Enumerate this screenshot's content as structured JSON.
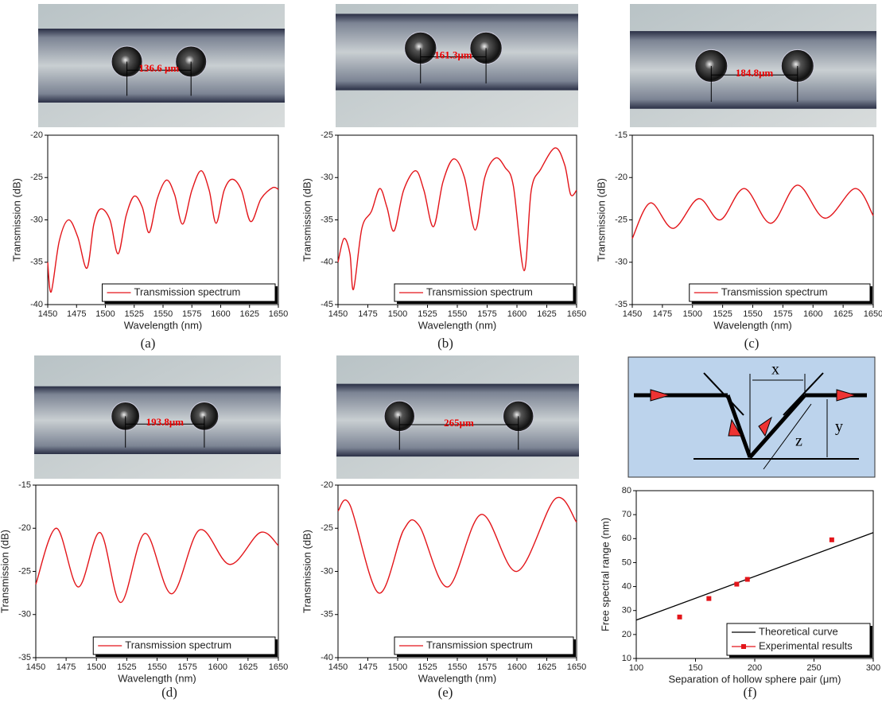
{
  "chart_data": [
    {
      "type": "line",
      "label": "(a)",
      "annotation": "136.6 μm",
      "xlabel": "Wavelength (nm)",
      "ylabel": "Transmission (dB)",
      "x": [
        1450,
        1453,
        1460,
        1468,
        1476,
        1484,
        1490,
        1496,
        1504,
        1511,
        1518,
        1525,
        1532,
        1538,
        1545,
        1553,
        1560,
        1567,
        1575,
        1583,
        1590,
        1596,
        1603,
        1610,
        1618,
        1626,
        1635,
        1645,
        1650
      ],
      "series": [
        {
          "name": "Transmission spectrum",
          "color": "#e3151a",
          "values": [
            -35,
            -38.5,
            -32.5,
            -30,
            -32,
            -35.7,
            -30.5,
            -28.7,
            -30,
            -34,
            -29.5,
            -27.2,
            -28.5,
            -31.5,
            -27.5,
            -25.3,
            -27,
            -30.5,
            -26.5,
            -24.2,
            -26.5,
            -30.4,
            -26.5,
            -25.2,
            -26.5,
            -30.2,
            -27.5,
            -26.2,
            -26.4
          ]
        }
      ],
      "xlim": [
        1450,
        1650
      ],
      "ylim": [
        -40,
        -20
      ],
      "xticks": [
        1450,
        1475,
        1500,
        1525,
        1550,
        1575,
        1600,
        1625,
        1650
      ],
      "yticks": [
        -40,
        -35,
        -30,
        -25,
        -20
      ]
    },
    {
      "type": "line",
      "label": "(b)",
      "annotation": "161.3μm",
      "xlabel": "Wavelength (nm)",
      "ylabel": "Transmission (dB)",
      "x": [
        1450,
        1455,
        1460,
        1463,
        1470,
        1478,
        1485,
        1491,
        1497,
        1505,
        1515,
        1522,
        1530,
        1538,
        1547,
        1556,
        1565,
        1573,
        1582,
        1590,
        1597,
        1606,
        1612,
        1620,
        1632,
        1640,
        1645,
        1650
      ],
      "series": [
        {
          "name": "Transmission spectrum",
          "color": "#e3151a",
          "values": [
            -40,
            -37.2,
            -39,
            -43.2,
            -36,
            -34,
            -31.3,
            -33.5,
            -36.3,
            -31.5,
            -29.2,
            -31.5,
            -35.8,
            -30.5,
            -27.8,
            -30,
            -36.2,
            -30,
            -27.7,
            -28.8,
            -31,
            -41,
            -31.5,
            -29,
            -26.5,
            -28.5,
            -32,
            -31.5
          ]
        }
      ],
      "xlim": [
        1450,
        1650
      ],
      "ylim": [
        -45,
        -25
      ],
      "xticks": [
        1450,
        1475,
        1500,
        1525,
        1550,
        1575,
        1600,
        1625,
        1650
      ],
      "yticks": [
        -45,
        -40,
        -35,
        -30,
        -25
      ]
    },
    {
      "type": "line",
      "label": "(c)",
      "annotation": "184.8μm",
      "xlabel": "Wavelength (nm)",
      "ylabel": "Transmission (dB)",
      "x": [
        1450,
        1465,
        1484,
        1505,
        1523,
        1543,
        1565,
        1587,
        1610,
        1635,
        1650
      ],
      "series": [
        {
          "name": "Transmission spectrum",
          "color": "#e3151a",
          "values": [
            -27.2,
            -23,
            -26,
            -22.5,
            -25,
            -21.3,
            -25.4,
            -20.9,
            -24.8,
            -21.3,
            -24.5
          ]
        }
      ],
      "xlim": [
        1450,
        1650
      ],
      "ylim": [
        -35,
        -15
      ],
      "xticks": [
        1450,
        1475,
        1500,
        1525,
        1550,
        1575,
        1600,
        1625,
        1650
      ],
      "yticks": [
        -35,
        -30,
        -25,
        -20,
        -15
      ]
    },
    {
      "type": "line",
      "label": "(d)",
      "annotation": "193.8μm",
      "xlabel": "Wavelength (nm)",
      "ylabel": "Transmission (dB)",
      "x": [
        1450,
        1467,
        1485,
        1503,
        1520,
        1540,
        1562,
        1585,
        1610,
        1635,
        1650
      ],
      "series": [
        {
          "name": "Transmission spectrum",
          "color": "#e3151a",
          "values": [
            -26.5,
            -20,
            -26.8,
            -20.5,
            -28.6,
            -20.6,
            -27.6,
            -20.2,
            -24.2,
            -20.5,
            -22
          ]
        }
      ],
      "xlim": [
        1450,
        1650
      ],
      "ylim": [
        -35,
        -15
      ],
      "xticks": [
        1450,
        1475,
        1500,
        1525,
        1550,
        1575,
        1600,
        1625,
        1650
      ],
      "yticks": [
        -35,
        -30,
        -25,
        -20,
        -15
      ]
    },
    {
      "type": "line",
      "label": "(e)",
      "annotation": "265μm",
      "xlabel": "Wavelength (nm)",
      "ylabel": "Transmission (dB)",
      "x": [
        1450,
        1460,
        1484,
        1505,
        1518,
        1542,
        1570,
        1600,
        1632,
        1650
      ],
      "series": [
        {
          "name": "Transmission spectrum",
          "color": "#e3151a",
          "values": [
            -23,
            -22.3,
            -32.5,
            -25.2,
            -24.7,
            -31.8,
            -23.4,
            -30,
            -21.6,
            -24.3
          ]
        }
      ],
      "xlim": [
        1450,
        1650
      ],
      "ylim": [
        -40,
        -20
      ],
      "xticks": [
        1450,
        1475,
        1500,
        1525,
        1550,
        1575,
        1600,
        1625,
        1650
      ],
      "yticks": [
        -40,
        -35,
        -30,
        -25,
        -20
      ]
    },
    {
      "type": "scatter",
      "label": "(f)",
      "diagram_labels": [
        "x",
        "y",
        "z"
      ],
      "xlabel": "Separation of hollow sphere pair (μm)",
      "ylabel": "Free spectral range (nm)",
      "series": [
        {
          "name": "Theoretical curve",
          "color": "#000000",
          "type": "line",
          "x": [
            100,
            300
          ],
          "values": [
            26,
            62.5
          ]
        },
        {
          "name": "Experimental results",
          "color": "#e3151a",
          "type": "scatter",
          "x": [
            136.6,
            161.3,
            184.8,
            193.8,
            265
          ],
          "values": [
            27.3,
            35,
            41,
            43,
            59.5
          ]
        }
      ],
      "xlim": [
        100,
        300
      ],
      "ylim": [
        10,
        80
      ],
      "xticks": [
        100,
        150,
        200,
        250,
        300
      ],
      "yticks": [
        10,
        20,
        30,
        40,
        50,
        60,
        70,
        80
      ]
    }
  ]
}
